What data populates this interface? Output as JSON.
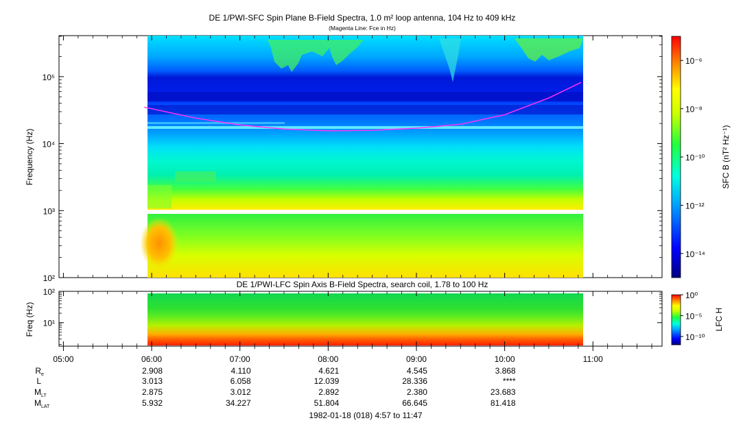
{
  "header": {
    "title": "DE 1/PWI-SFC  Spin Plane B-Field Spectra, 1.0 m² loop antenna, 104 Hz to 409 kHz",
    "subtitle": "(Magenta Line: Fce in Hz)"
  },
  "chart_data": [
    {
      "type": "heatmap",
      "title": "DE 1/PWI-SFC  Spin Plane B-Field Spectra, 1.0 m² loop antenna, 104 Hz to 409 kHz",
      "subtitle": "(Magenta Line: Fce in Hz)",
      "ylabel": "Frequency (Hz)",
      "yscale": "log",
      "ylim": [
        100,
        409000
      ],
      "yticks": [
        {
          "value": 100,
          "label": "10²"
        },
        {
          "value": 1000,
          "label": "10³"
        },
        {
          "value": 10000,
          "label": "10⁴"
        },
        {
          "value": 100000,
          "label": "10⁵"
        }
      ],
      "xlim": [
        "04:57",
        "11:47"
      ],
      "data_range": [
        "05:55",
        "10:52"
      ],
      "gap_hz": [
        900,
        1020
      ],
      "colorbar": {
        "label": "SFC B (nT² Hz⁻¹)",
        "scale": "log",
        "range": [
          1e-15,
          1e-05
        ],
        "ticks": [
          {
            "value": 1e-06,
            "label": "10⁻⁶"
          },
          {
            "value": 1e-08,
            "label": "10⁻⁸"
          },
          {
            "value": 1e-10,
            "label": "10⁻¹⁰"
          },
          {
            "value": 1e-12,
            "label": "10⁻¹²"
          },
          {
            "value": 1e-14,
            "label": "10⁻¹⁴"
          }
        ]
      },
      "fce_line": {
        "name": "Fce in Hz",
        "color": "#ff33ff",
        "points": [
          [
            "05:55",
            35000
          ],
          [
            "06:30",
            24000
          ],
          [
            "07:00",
            19000
          ],
          [
            "07:30",
            16500
          ],
          [
            "08:00",
            15500
          ],
          [
            "08:30",
            15800
          ],
          [
            "09:00",
            17000
          ],
          [
            "09:30",
            19500
          ],
          [
            "10:00",
            27000
          ],
          [
            "10:30",
            48000
          ],
          [
            "10:52",
            82000
          ]
        ]
      },
      "grid": false
    },
    {
      "type": "heatmap",
      "title": "DE 1/PWI-LFC  Spin Axis B-Field Spectra, search coil, 1.78 to 100 Hz",
      "ylabel": "Freq (Hz)",
      "yscale": "log",
      "ylim": [
        1.78,
        100
      ],
      "yticks": [
        {
          "value": 10,
          "label": "10¹"
        },
        {
          "value": 100,
          "label": "10²"
        }
      ],
      "xlim": [
        "04:57",
        "11:47"
      ],
      "data_range": [
        "05:55",
        "10:52"
      ],
      "colorbar": {
        "label": "LFC H",
        "scale": "log",
        "range": [
          1e-12,
          1
        ],
        "ticks": [
          {
            "value": 1,
            "label": "10⁰"
          },
          {
            "value": 1e-05,
            "label": "10⁻⁵"
          },
          {
            "value": 1e-10,
            "label": "10⁻¹⁰"
          }
        ]
      },
      "grid": false
    }
  ],
  "time_axis": {
    "tick_labels": [
      "05:00",
      "06:00",
      "07:00",
      "08:00",
      "09:00",
      "10:00",
      "11:00"
    ],
    "minor_ticks_per_hour": 6
  },
  "ephemeris": {
    "rows": [
      {
        "label": "R",
        "sub": "e",
        "values": [
          "2.908",
          "4.110",
          "4.621",
          "4.545",
          "3.868"
        ]
      },
      {
        "label": "L",
        "sub": "",
        "values": [
          "3.013",
          "6.058",
          "12.039",
          "28.336",
          "****"
        ]
      },
      {
        "label": "M",
        "sub": "LT",
        "values": [
          "2.875",
          "3.012",
          "2.892",
          "2.380",
          "23.683"
        ]
      },
      {
        "label": "M",
        "sub": "LAT",
        "values": [
          "5.932",
          "34.227",
          "51.804",
          "66.645",
          "81.418"
        ]
      }
    ],
    "caption": "1982-01-18 (018) 4:57 to 11:47"
  }
}
